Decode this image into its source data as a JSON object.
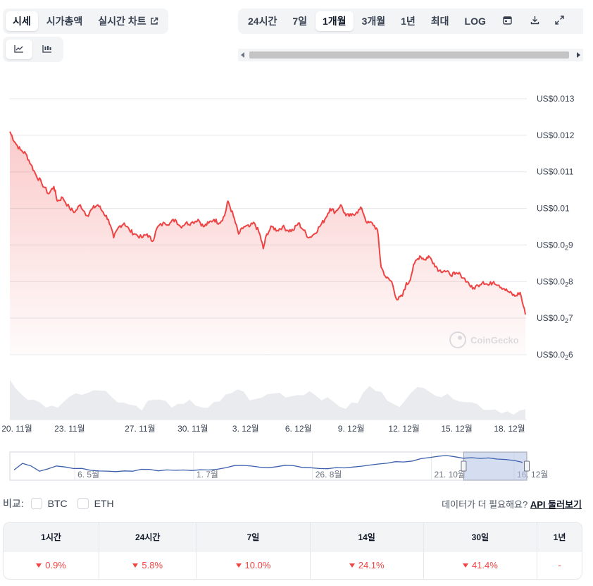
{
  "view_tabs": [
    {
      "label": "시세",
      "active": true
    },
    {
      "label": "시가총액",
      "active": false
    },
    {
      "label": "실시간 차트",
      "active": false,
      "icon": "external-link-icon"
    }
  ],
  "chart_style_toggles": [
    {
      "icon": "line-chart-icon",
      "active": true
    },
    {
      "icon": "candlestick-chart-icon",
      "active": false
    }
  ],
  "range_tabs": [
    {
      "label": "24시간",
      "active": false
    },
    {
      "label": "7일",
      "active": false
    },
    {
      "label": "1개월",
      "active": true
    },
    {
      "label": "3개월",
      "active": false
    },
    {
      "label": "1년",
      "active": false
    },
    {
      "label": "최대",
      "active": false
    },
    {
      "label": "LOG",
      "active": false
    }
  ],
  "range_tool_icons": [
    "calendar-icon",
    "download-icon",
    "expand-icon"
  ],
  "watermark": "CoinGecko",
  "colors": {
    "price_line": "#ef4444",
    "navigator_line": "#3b5fad",
    "negative": "#ef4444"
  },
  "chart_data": {
    "type": "area",
    "y_ticks": [
      {
        "value": 0.006,
        "label": "US$0.0",
        "sub": "2",
        "after": "6"
      },
      {
        "value": 0.007,
        "label": "US$0.0",
        "sub": "2",
        "after": "7"
      },
      {
        "value": 0.008,
        "label": "US$0.0",
        "sub": "2",
        "after": "8"
      },
      {
        "value": 0.009,
        "label": "US$0.0",
        "sub": "2",
        "after": "9"
      },
      {
        "value": 0.01,
        "label": "US$0.01",
        "sub": "",
        "after": ""
      },
      {
        "value": 0.011,
        "label": "US$0.011",
        "sub": "",
        "after": ""
      },
      {
        "value": 0.012,
        "label": "US$0.012",
        "sub": "",
        "after": ""
      },
      {
        "value": 0.013,
        "label": "US$0.013",
        "sub": "",
        "after": ""
      }
    ],
    "ylim": [
      0.006,
      0.013
    ],
    "x_ticks": [
      {
        "day": 1,
        "label": "20. 11월"
      },
      {
        "day": 4,
        "label": "23. 11월"
      },
      {
        "day": 8,
        "label": "27. 11월"
      },
      {
        "day": 11,
        "label": "30. 11월"
      },
      {
        "day": 14,
        "label": "3. 12월"
      },
      {
        "day": 17,
        "label": "6. 12월"
      },
      {
        "day": 20,
        "label": "9. 12월"
      },
      {
        "day": 23,
        "label": "12. 12월"
      },
      {
        "day": 26,
        "label": "15. 12월"
      },
      {
        "day": 29,
        "label": "18. 12월"
      }
    ],
    "xlim": [
      0.6,
      29.9
    ],
    "x_unit": "day of period (1 = 20 Nov)",
    "price": [
      [
        0.6,
        0.0121
      ],
      [
        0.9,
        0.0118
      ],
      [
        1.2,
        0.0116
      ],
      [
        1.5,
        0.0115
      ],
      [
        1.8,
        0.0112
      ],
      [
        2.1,
        0.0109
      ],
      [
        2.4,
        0.0107
      ],
      [
        2.8,
        0.0104
      ],
      [
        3.1,
        0.0106
      ],
      [
        3.3,
        0.0102
      ],
      [
        3.6,
        0.0103
      ],
      [
        4.0,
        0.01
      ],
      [
        4.3,
        0.0099
      ],
      [
        4.6,
        0.0101
      ],
      [
        5.0,
        0.0098
      ],
      [
        5.3,
        0.01
      ],
      [
        5.6,
        0.0101
      ],
      [
        5.9,
        0.0099
      ],
      [
        6.2,
        0.0097
      ],
      [
        6.5,
        0.0092
      ],
      [
        6.8,
        0.0095
      ],
      [
        7.1,
        0.0096
      ],
      [
        7.4,
        0.0094
      ],
      [
        7.7,
        0.0093
      ],
      [
        8.1,
        0.0092
      ],
      [
        8.4,
        0.0093
      ],
      [
        8.7,
        0.0091
      ],
      [
        9.0,
        0.0095
      ],
      [
        9.4,
        0.0096
      ],
      [
        9.7,
        0.0096
      ],
      [
        10.0,
        0.0097
      ],
      [
        10.3,
        0.0095
      ],
      [
        10.6,
        0.0096
      ],
      [
        10.9,
        0.0096
      ],
      [
        11.3,
        0.0097
      ],
      [
        11.6,
        0.0095
      ],
      [
        11.9,
        0.0096
      ],
      [
        12.2,
        0.0097
      ],
      [
        12.5,
        0.0096
      ],
      [
        12.8,
        0.0098
      ],
      [
        13.0,
        0.0102
      ],
      [
        13.3,
        0.0098
      ],
      [
        13.6,
        0.0093
      ],
      [
        13.9,
        0.0095
      ],
      [
        14.2,
        0.0095
      ],
      [
        14.5,
        0.0096
      ],
      [
        14.8,
        0.0093
      ],
      [
        15.0,
        0.0089
      ],
      [
        15.2,
        0.0093
      ],
      [
        15.5,
        0.0095
      ],
      [
        15.8,
        0.0094
      ],
      [
        16.1,
        0.0095
      ],
      [
        16.4,
        0.0094
      ],
      [
        16.7,
        0.0094
      ],
      [
        17.0,
        0.0096
      ],
      [
        17.3,
        0.0094
      ],
      [
        17.6,
        0.0092
      ],
      [
        17.9,
        0.0093
      ],
      [
        18.2,
        0.0095
      ],
      [
        18.5,
        0.0097
      ],
      [
        18.8,
        0.01
      ],
      [
        19.1,
        0.0099
      ],
      [
        19.4,
        0.0101
      ],
      [
        19.7,
        0.0098
      ],
      [
        20.0,
        0.0098
      ],
      [
        20.3,
        0.0099
      ],
      [
        20.6,
        0.01
      ],
      [
        20.9,
        0.0096
      ],
      [
        21.2,
        0.0096
      ],
      [
        21.5,
        0.0094
      ],
      [
        21.7,
        0.0084
      ],
      [
        22.0,
        0.0081
      ],
      [
        22.3,
        0.008
      ],
      [
        22.6,
        0.0075
      ],
      [
        22.9,
        0.0076
      ],
      [
        23.1,
        0.0079
      ],
      [
        23.3,
        0.008
      ],
      [
        23.6,
        0.0085
      ],
      [
        23.9,
        0.0087
      ],
      [
        24.2,
        0.0086
      ],
      [
        24.4,
        0.0087
      ],
      [
        24.7,
        0.0085
      ],
      [
        25.0,
        0.0083
      ],
      [
        25.3,
        0.0083
      ],
      [
        25.6,
        0.0082
      ],
      [
        25.9,
        0.0082
      ],
      [
        26.2,
        0.0082
      ],
      [
        26.6,
        0.008
      ],
      [
        26.9,
        0.0078
      ],
      [
        27.2,
        0.0079
      ],
      [
        27.5,
        0.008
      ],
      [
        27.8,
        0.0079
      ],
      [
        28.1,
        0.008
      ],
      [
        28.4,
        0.0079
      ],
      [
        28.7,
        0.0078
      ],
      [
        29.0,
        0.0077
      ],
      [
        29.3,
        0.0076
      ],
      [
        29.6,
        0.0077
      ],
      [
        29.9,
        0.0071
      ]
    ],
    "volume_relative": [
      0.75,
      0.55,
      0.45,
      0.38,
      0.32,
      0.28,
      0.25,
      0.22,
      0.26,
      0.32,
      0.38,
      0.52,
      0.45,
      0.5,
      0.58,
      0.52,
      0.48,
      0.42,
      0.36,
      0.3,
      0.27,
      0.24,
      0.22,
      0.3,
      0.36,
      0.33,
      0.3,
      0.26,
      0.22,
      0.24,
      0.3,
      0.28,
      0.24,
      0.22,
      0.26,
      0.3,
      0.4,
      0.48,
      0.55,
      0.46,
      0.38,
      0.33,
      0.38,
      0.44,
      0.48,
      0.46,
      0.44,
      0.42,
      0.45,
      0.48,
      0.5,
      0.46,
      0.4,
      0.34,
      0.3,
      0.26,
      0.22,
      0.25,
      0.32,
      0.46,
      0.58,
      0.52,
      0.45,
      0.38,
      0.32,
      0.28,
      0.32,
      0.44,
      0.56,
      0.62,
      0.55,
      0.46,
      0.42,
      0.4,
      0.42,
      0.38,
      0.34,
      0.3,
      0.26,
      0.22,
      0.2,
      0.18,
      0.16,
      0.15,
      0.14,
      0.15,
      0.16
    ],
    "navigator": {
      "labels": [
        "6. 5월",
        "1. 7월",
        "26. 8월",
        "21. 10월",
        "16. 12월"
      ],
      "label_positions": [
        0.15,
        0.38,
        0.61,
        0.84,
        1.0
      ],
      "trend": [
        0.25,
        0.6,
        0.42,
        0.2,
        0.3,
        0.45,
        0.35,
        0.28,
        0.3,
        0.22,
        0.2,
        0.18,
        0.17,
        0.22,
        0.2,
        0.25,
        0.24,
        0.2,
        0.22,
        0.24,
        0.22,
        0.2,
        0.23,
        0.22,
        0.3,
        0.38,
        0.42,
        0.45,
        0.42,
        0.4,
        0.38,
        0.42,
        0.45,
        0.44,
        0.38,
        0.35,
        0.33,
        0.3,
        0.34,
        0.36,
        0.4,
        0.45,
        0.5,
        0.55,
        0.58,
        0.62,
        0.66,
        0.72,
        0.78,
        0.86,
        0.92,
        0.96,
        0.88,
        0.82,
        0.84,
        0.8,
        0.82,
        0.76,
        0.74,
        0.7,
        0.62
      ],
      "selected_range": [
        0.878,
        1.0
      ]
    }
  },
  "compare": {
    "label": "비교:",
    "options": [
      {
        "label": "BTC",
        "checked": false
      },
      {
        "label": "ETH",
        "checked": false
      }
    ]
  },
  "more_data": {
    "text": "데이터가 더 필요해요?",
    "link": "API 둘러보기"
  },
  "changes": [
    {
      "period": "1시간",
      "value": "0.9%",
      "direction": "down"
    },
    {
      "period": "24시간",
      "value": "5.8%",
      "direction": "down"
    },
    {
      "period": "7일",
      "value": "10.0%",
      "direction": "down"
    },
    {
      "period": "14일",
      "value": "24.1%",
      "direction": "down"
    },
    {
      "period": "30일",
      "value": "41.4%",
      "direction": "down"
    },
    {
      "period": "1년",
      "value": "-",
      "direction": "none"
    }
  ]
}
